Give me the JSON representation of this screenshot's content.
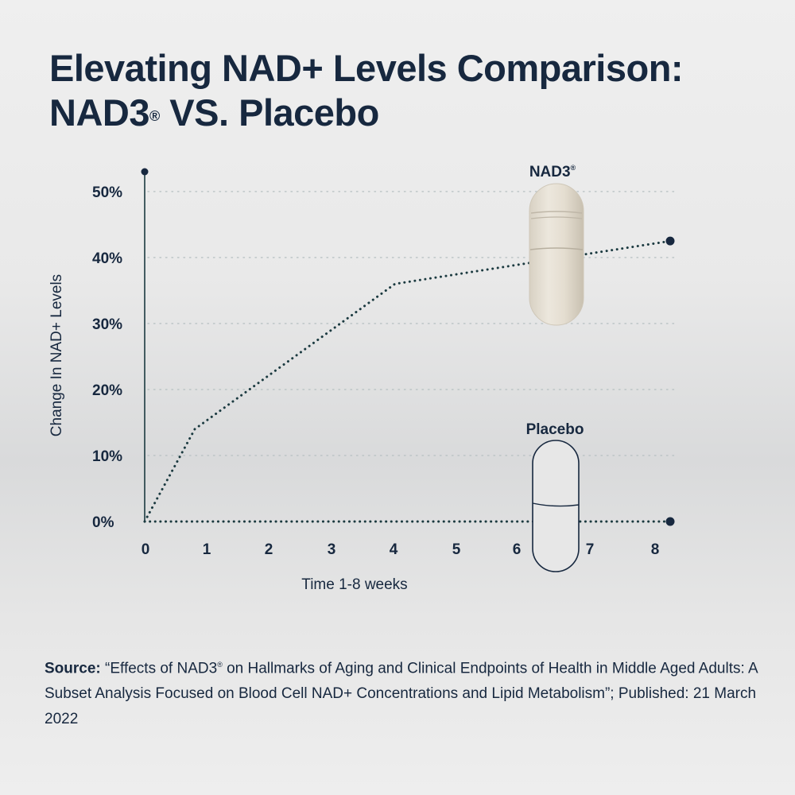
{
  "title_line1": "Elevating NAD+ Levels Comparison:",
  "title_line2_prefix": "NAD3",
  "title_line2_reg": "®",
  "title_line2_suffix": " VS. Placebo",
  "source": {
    "label": "Source:",
    "text_before_reg": " “Effects of NAD3",
    "reg": "®",
    "text_after_reg": " on Hallmarks of Aging and Clinical Endpoints of Health in Middle Aged Adults: A Subset Analysis Focused on Blood Cell NAD+ Concentrations and Lipid Metabolism”; Published: 21 March 2022"
  },
  "colors": {
    "text": "#17283f",
    "line": "#1b3a40",
    "grid": "#b9c2c4",
    "capsule_fill": "#e6e0d4",
    "capsule_stroke": "#17283f"
  },
  "chart_data": {
    "type": "line",
    "xlabel": "Time 1-8 weeks",
    "ylabel": "Change In NAD+ Levels",
    "x_ticks": [
      "0",
      "1",
      "2",
      "3",
      "4",
      "5",
      "6",
      "7",
      "8"
    ],
    "y_ticks": [
      "0%",
      "10%",
      "20%",
      "30%",
      "40%",
      "50%"
    ],
    "xlim": [
      0,
      8.4
    ],
    "ylim": [
      0,
      53
    ],
    "grid": "horizontal dotted",
    "series": [
      {
        "name": "NAD3®",
        "label_prefix": "NAD3",
        "label_reg": "®",
        "style": "dotted",
        "points": [
          [
            0,
            0
          ],
          [
            0.8,
            14
          ],
          [
            4,
            36
          ],
          [
            8.4,
            42.5
          ]
        ]
      },
      {
        "name": "Placebo",
        "label_prefix": "Placebo",
        "label_reg": "",
        "style": "dotted",
        "points": [
          [
            0,
            0
          ],
          [
            8.4,
            0
          ]
        ]
      }
    ]
  }
}
